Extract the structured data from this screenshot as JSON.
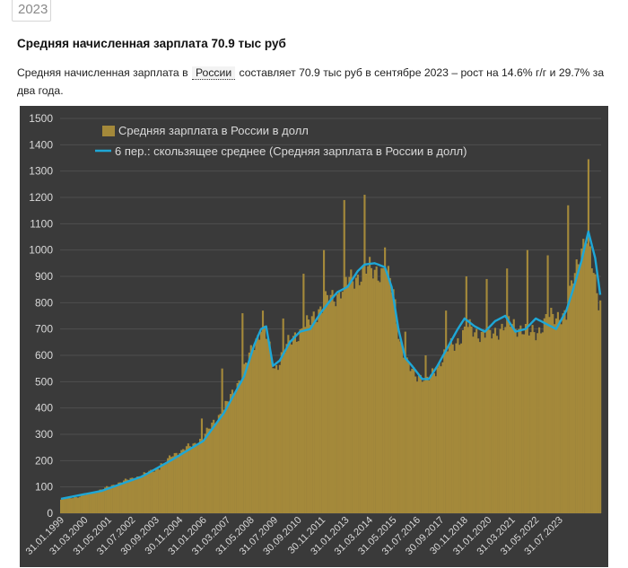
{
  "year_tag": "2023",
  "headline": "Средняя начисленная зарплата 70.9 тыс руб",
  "summary": {
    "before_link": "Средняя начисленная зарплата в",
    "link": "России",
    "after_link": "составляет 70.9 тыс руб в сентябре 2023 – рост на 14.6% г/г и 29.7% за два года."
  },
  "colors": {
    "background": "#3a3a3a",
    "bar": "#a4893a",
    "line": "#1ea7d6",
    "text": "#d9d9d9"
  },
  "chart_data": {
    "type": "bar",
    "ylim": [
      0,
      1500
    ],
    "yticks": [
      0,
      100,
      200,
      300,
      400,
      500,
      600,
      700,
      800,
      900,
      1000,
      1100,
      1200,
      1300,
      1400,
      1500
    ],
    "x_tick_labels": [
      "31.01.1999",
      "31.03.2000",
      "31.05.2001",
      "31.07.2002",
      "30.09.2003",
      "30.11.2004",
      "31.01.2006",
      "31.03.2007",
      "31.05.2008",
      "31.07.2009",
      "30.09.2010",
      "30.11.2011",
      "31.01.2013",
      "31.03.2014",
      "31.05.2015",
      "31.07.2016",
      "30.09.2017",
      "30.11.2018",
      "31.01.2020",
      "31.03.2021",
      "31.05.2022",
      "31.07.2023"
    ],
    "legend": [
      "Средняя зарплата в России в долл",
      "6 пер.: скользящее среднее (Средняя зарплата в России в долл)"
    ],
    "anchors": [
      {
        "month": 0,
        "value": 52
      },
      {
        "month": 12,
        "value": 65
      },
      {
        "month": 24,
        "value": 90
      },
      {
        "month": 36,
        "value": 120
      },
      {
        "month": 48,
        "value": 145
      },
      {
        "month": 60,
        "value": 180
      },
      {
        "month": 66,
        "value": 225
      },
      {
        "month": 72,
        "value": 240
      },
      {
        "month": 84,
        "value": 285
      },
      {
        "month": 90,
        "value": 350
      },
      {
        "month": 96,
        "value": 390
      },
      {
        "month": 102,
        "value": 470
      },
      {
        "month": 108,
        "value": 540
      },
      {
        "month": 114,
        "value": 650
      },
      {
        "month": 119,
        "value": 720
      },
      {
        "month": 123,
        "value": 620
      },
      {
        "month": 126,
        "value": 550
      },
      {
        "month": 132,
        "value": 620
      },
      {
        "month": 138,
        "value": 680
      },
      {
        "month": 144,
        "value": 700
      },
      {
        "month": 150,
        "value": 760
      },
      {
        "month": 156,
        "value": 800
      },
      {
        "month": 162,
        "value": 830
      },
      {
        "month": 168,
        "value": 870
      },
      {
        "month": 174,
        "value": 900
      },
      {
        "month": 180,
        "value": 920
      },
      {
        "month": 186,
        "value": 930
      },
      {
        "month": 192,
        "value": 900
      },
      {
        "month": 196,
        "value": 850
      },
      {
        "month": 200,
        "value": 650
      },
      {
        "month": 204,
        "value": 560
      },
      {
        "month": 208,
        "value": 540
      },
      {
        "month": 212,
        "value": 520
      },
      {
        "month": 216,
        "value": 500
      },
      {
        "month": 222,
        "value": 560
      },
      {
        "month": 228,
        "value": 620
      },
      {
        "month": 234,
        "value": 660
      },
      {
        "month": 240,
        "value": 700
      },
      {
        "month": 246,
        "value": 690
      },
      {
        "month": 252,
        "value": 670
      },
      {
        "month": 258,
        "value": 700
      },
      {
        "month": 264,
        "value": 720
      },
      {
        "month": 270,
        "value": 710
      },
      {
        "month": 276,
        "value": 680
      },
      {
        "month": 282,
        "value": 700
      },
      {
        "month": 288,
        "value": 740
      },
      {
        "month": 294,
        "value": 760
      },
      {
        "month": 298,
        "value": 740
      },
      {
        "month": 302,
        "value": 900
      },
      {
        "month": 306,
        "value": 1000
      },
      {
        "month": 310,
        "value": 1030
      },
      {
        "month": 314,
        "value": 920
      },
      {
        "month": 317,
        "value": 820
      }
    ],
    "spikes": [
      {
        "month": 59,
        "value": 190
      },
      {
        "month": 71,
        "value": 240
      },
      {
        "month": 83,
        "value": 360
      },
      {
        "month": 95,
        "value": 550
      },
      {
        "month": 107,
        "value": 760
      },
      {
        "month": 119,
        "value": 770
      },
      {
        "month": 131,
        "value": 740
      },
      {
        "month": 143,
        "value": 910
      },
      {
        "month": 155,
        "value": 1000
      },
      {
        "month": 167,
        "value": 1190
      },
      {
        "month": 179,
        "value": 1210
      },
      {
        "month": 191,
        "value": 1010
      },
      {
        "month": 203,
        "value": 690
      },
      {
        "month": 215,
        "value": 600
      },
      {
        "month": 227,
        "value": 770
      },
      {
        "month": 239,
        "value": 900
      },
      {
        "month": 251,
        "value": 890
      },
      {
        "month": 263,
        "value": 930
      },
      {
        "month": 275,
        "value": 1000
      },
      {
        "month": 287,
        "value": 980
      },
      {
        "month": 299,
        "value": 1170
      },
      {
        "month": 311,
        "value": 1345
      }
    ],
    "moving_average": [
      {
        "month": 0,
        "value": 55
      },
      {
        "month": 24,
        "value": 85
      },
      {
        "month": 48,
        "value": 140
      },
      {
        "month": 66,
        "value": 205
      },
      {
        "month": 84,
        "value": 275
      },
      {
        "month": 96,
        "value": 380
      },
      {
        "month": 108,
        "value": 520
      },
      {
        "month": 114,
        "value": 640
      },
      {
        "month": 118,
        "value": 700
      },
      {
        "month": 121,
        "value": 710
      },
      {
        "month": 125,
        "value": 560
      },
      {
        "month": 129,
        "value": 580
      },
      {
        "month": 135,
        "value": 650
      },
      {
        "month": 141,
        "value": 690
      },
      {
        "month": 147,
        "value": 700
      },
      {
        "month": 153,
        "value": 760
      },
      {
        "month": 159,
        "value": 810
      },
      {
        "month": 163,
        "value": 840
      },
      {
        "month": 169,
        "value": 860
      },
      {
        "month": 175,
        "value": 920
      },
      {
        "month": 179,
        "value": 945
      },
      {
        "month": 185,
        "value": 950
      },
      {
        "month": 191,
        "value": 935
      },
      {
        "month": 195,
        "value": 860
      },
      {
        "month": 199,
        "value": 700
      },
      {
        "month": 203,
        "value": 590
      },
      {
        "month": 207,
        "value": 560
      },
      {
        "month": 213,
        "value": 510
      },
      {
        "month": 217,
        "value": 510
      },
      {
        "month": 222,
        "value": 560
      },
      {
        "month": 228,
        "value": 630
      },
      {
        "month": 234,
        "value": 700
      },
      {
        "month": 238,
        "value": 740
      },
      {
        "month": 244,
        "value": 710
      },
      {
        "month": 250,
        "value": 690
      },
      {
        "month": 256,
        "value": 730
      },
      {
        "month": 262,
        "value": 750
      },
      {
        "month": 268,
        "value": 690
      },
      {
        "month": 274,
        "value": 700
      },
      {
        "month": 280,
        "value": 740
      },
      {
        "month": 286,
        "value": 720
      },
      {
        "month": 292,
        "value": 700
      },
      {
        "month": 298,
        "value": 770
      },
      {
        "month": 302,
        "value": 850
      },
      {
        "month": 307,
        "value": 960
      },
      {
        "month": 311,
        "value": 1070
      },
      {
        "month": 315,
        "value": 970
      },
      {
        "month": 318,
        "value": 830
      }
    ]
  }
}
